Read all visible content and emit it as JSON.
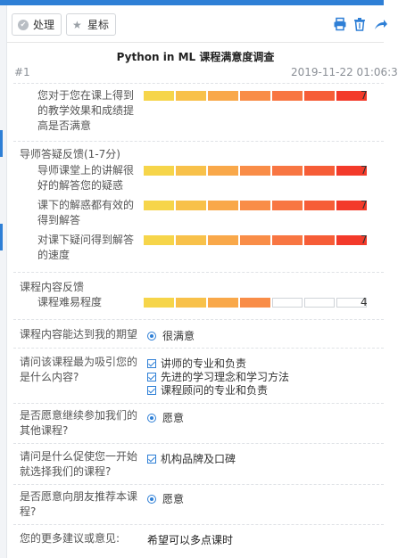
{
  "toolbar": {
    "process_label": "处理",
    "star_label": "星标",
    "icons": [
      "check-circle-icon",
      "star-icon",
      "print-icon",
      "trash-icon",
      "share-icon"
    ]
  },
  "survey": {
    "title": "Python in ML 课程满意度调查",
    "record_no": "#1",
    "timestamp": "2019-11-22 01:06:3",
    "scale_max": 7,
    "scale_colors": [
      "#f6d54a",
      "#f8c14a",
      "#f9a84a",
      "#f98d48",
      "#f87642",
      "#f65d37",
      "#f33a2a"
    ],
    "satisfaction": {
      "question": "您对于您在课上得到的教学效果和成绩提高是否满意",
      "score": 7
    },
    "mentor_section": {
      "heading": "导师答疑反馈(1-7分)",
      "items": [
        {
          "label": "导师课堂上的讲解很好的解答您的疑惑",
          "score": 7
        },
        {
          "label": "课下的解惑都有效的得到解答",
          "score": 7
        },
        {
          "label": "对课下疑问得到解答的速度",
          "score": 7
        }
      ]
    },
    "content_section": {
      "heading": "课程内容反馈",
      "items": [
        {
          "label": "课程难易程度",
          "score": 4
        }
      ]
    },
    "expectation": {
      "question": "课程内容能达到我的期望",
      "answer": "很满意"
    },
    "attraction": {
      "question": "请问该课程最为吸引您的是什么内容?",
      "answers": [
        "讲师的专业和负责",
        "先进的学习理念和学习方法",
        "课程顾问的专业和负责"
      ]
    },
    "continue": {
      "question": "是否愿意继续参加我们的其他课程?",
      "answer": "愿意"
    },
    "reason": {
      "question": "请问是什么促使您一开始就选择我们的课程?",
      "answer": "机构品牌及口碑"
    },
    "recommend": {
      "question": "是否愿意向朋友推荐本课程?",
      "answer": "愿意"
    },
    "suggestion": {
      "question": "您的更多建议或意见:",
      "answer": "希望可以多点课时"
    }
  }
}
